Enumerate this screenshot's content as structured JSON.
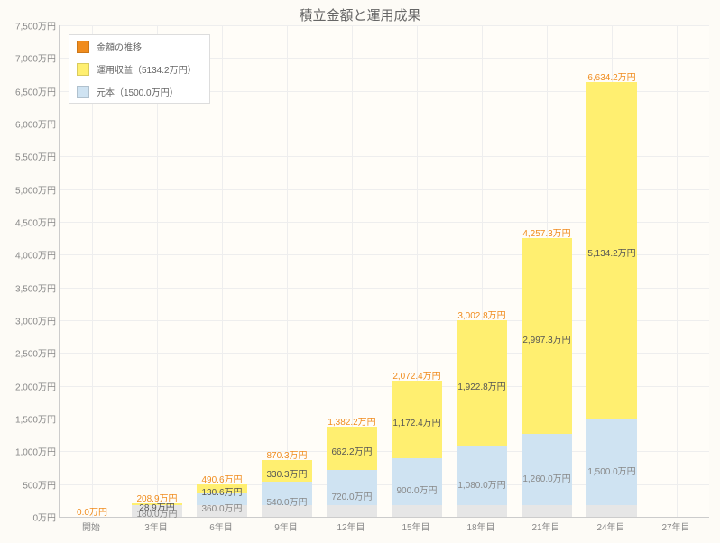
{
  "chart": {
    "type": "stacked-bar",
    "title": "積立金額と運用成果",
    "background_color": "#fdfbf6",
    "grid_color": "#eeeeee",
    "axis_color": "#cccccc",
    "ymax": 7500,
    "ytick_step": 500,
    "y_unit_suffix": "万円",
    "label_fontsize": 10,
    "title_fontsize": 15,
    "bar_width_ratio": 0.78,
    "categories": [
      "開始",
      "3年目",
      "6年目",
      "9年目",
      "12年目",
      "15年目",
      "18年目",
      "21年目",
      "24年目",
      "27年目"
    ],
    "legend": [
      {
        "label": "金額の推移",
        "color": "#f08c1e"
      },
      {
        "label": "運用収益（5134.2万円）",
        "color": "#ffef70"
      },
      {
        "label": "元本（1500.0万円）",
        "color": "#cfe3f2"
      }
    ],
    "colors": {
      "principal_first": "#e6e6e6",
      "principal_top": "#cfe3f2",
      "profit": "#ffef70",
      "total_label": "#f08c1e",
      "profit_label": "#555555",
      "principal_label": "#888888"
    },
    "bars": [
      {
        "principal_first": 0,
        "principal_top": 0,
        "profit": 0,
        "total_label": "0.0万円",
        "profit_label": null,
        "principal_label": null
      },
      {
        "principal_first": 180.0,
        "principal_top": 0,
        "profit": 28.9,
        "total_label": "208.9万円",
        "profit_label": "28.9万円",
        "principal_label": "180.0万円"
      },
      {
        "principal_first": 180.0,
        "principal_top": 180.0,
        "profit": 130.6,
        "total_label": "490.6万円",
        "profit_label": "130.6万円",
        "principal_label": "360.0万円"
      },
      {
        "principal_first": 180.0,
        "principal_top": 360.0,
        "profit": 330.3,
        "total_label": "870.3万円",
        "profit_label": "330.3万円",
        "principal_label": "540.0万円"
      },
      {
        "principal_first": 180.0,
        "principal_top": 540.0,
        "profit": 662.2,
        "total_label": "1,382.2万円",
        "profit_label": "662.2万円",
        "principal_label": "720.0万円"
      },
      {
        "principal_first": 180.0,
        "principal_top": 720.0,
        "profit": 1172.4,
        "total_label": "2,072.4万円",
        "profit_label": "1,172.4万円",
        "principal_label": "900.0万円"
      },
      {
        "principal_first": 180.0,
        "principal_top": 900.0,
        "profit": 1922.8,
        "total_label": "3,002.8万円",
        "profit_label": "1,922.8万円",
        "principal_label": "1,080.0万円"
      },
      {
        "principal_first": 180.0,
        "principal_top": 1080.0,
        "profit": 2997.3,
        "total_label": "4,257.3万円",
        "profit_label": "2,997.3万円",
        "principal_label": "1,260.0万円"
      },
      {
        "principal_first": 180.0,
        "principal_top": 1320.0,
        "profit": 5134.2,
        "total_label": "6,634.2万円",
        "profit_label": "5,134.2万円",
        "principal_label": "1,500.0万円"
      },
      null
    ]
  }
}
